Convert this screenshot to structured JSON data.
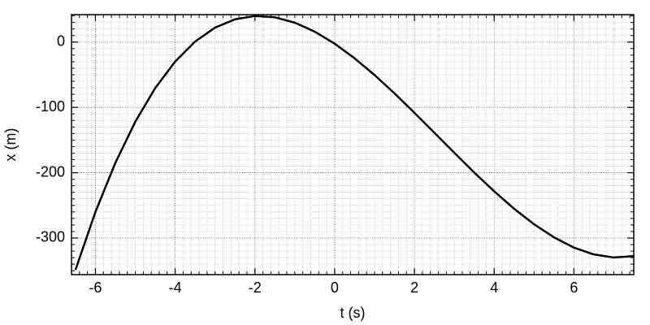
{
  "chart_data": {
    "type": "line",
    "x_label": "t (s)",
    "y_label": "x (m)",
    "x": [
      -6.5,
      -6,
      -5.5,
      -5,
      -4.5,
      -4,
      -3.5,
      -3,
      -2.5,
      -2,
      -1.5,
      -1,
      -0.5,
      0,
      0.5,
      1,
      1.5,
      2,
      2.5,
      3,
      3.5,
      4,
      4.5,
      5,
      5.5,
      6,
      6.5,
      7,
      7.5
    ],
    "series": [
      {
        "color": "#000000",
        "values": [
          -348.7,
          -260.1,
          -184.9,
          -121.9,
          -70.4,
          -29.8,
          0.8,
          22.1,
          34.8,
          39.9,
          37.9,
          29.7,
          15.9,
          -2.5,
          -24.9,
          -50.5,
          -78.5,
          -108.3,
          -138.8,
          -169.5,
          -199.8,
          -228.4,
          -255.2,
          -278.9,
          -298.9,
          -314.7,
          -325.1,
          -329.8,
          -327.6
        ]
      }
    ],
    "xlim": [
      -6.6,
      7.5
    ],
    "ylim": [
      -356,
      42
    ],
    "xticks": [
      -6,
      -4,
      -2,
      0,
      2,
      4,
      6
    ],
    "yticks": [
      -300,
      -200,
      -100,
      0
    ],
    "minor_grid": true
  }
}
